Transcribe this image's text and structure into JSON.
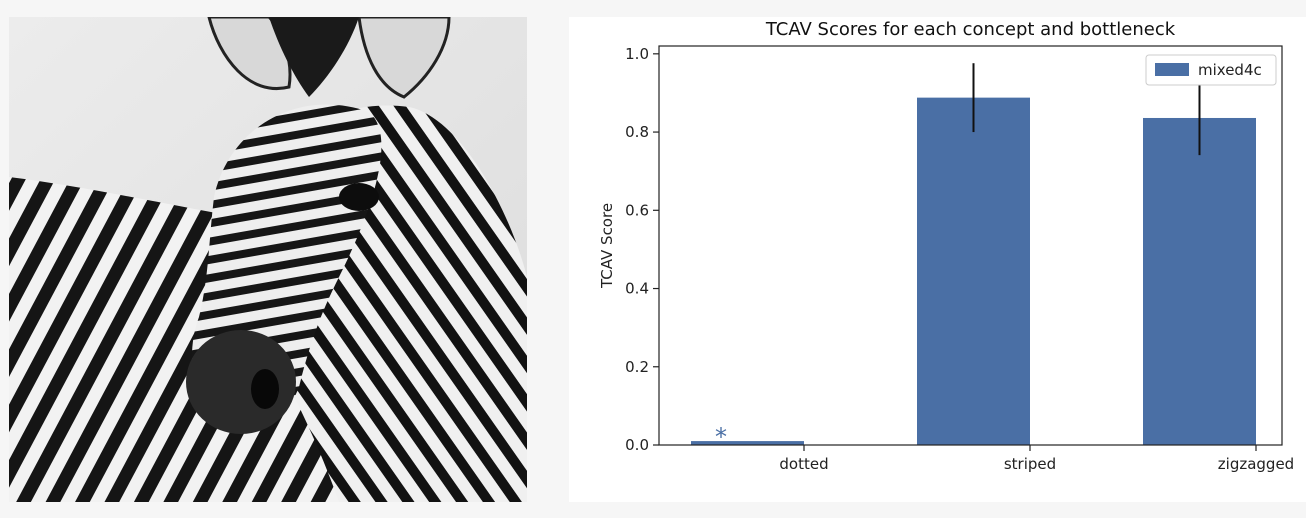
{
  "photo": {
    "subject": "zebra",
    "style": "black-and-white photograph"
  },
  "chart_data": {
    "type": "bar",
    "title": "TCAV Scores for each concept and bottleneck",
    "xlabel": "",
    "ylabel": "TCAV Score",
    "ylim": [
      0,
      1.02
    ],
    "yticks": [
      "0.0",
      "0.2",
      "0.4",
      "0.6",
      "0.8",
      "1.0"
    ],
    "categories": [
      "dotted",
      "striped",
      "zigzagged"
    ],
    "series": [
      {
        "name": "mixed4c",
        "values": [
          0.01,
          0.888,
          0.836
        ],
        "errors": [
          0,
          0.088,
          0.095
        ],
        "color": "#4a6fa5"
      }
    ],
    "annotations": [
      {
        "category": "dotted",
        "text": "*",
        "color": "#4a6fa5"
      }
    ],
    "grid": false,
    "legend_position": "top-right"
  }
}
